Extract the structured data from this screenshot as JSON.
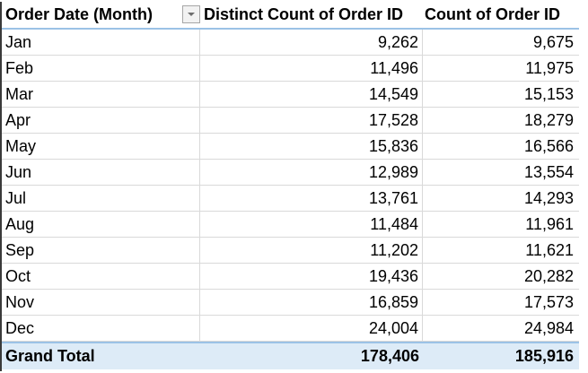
{
  "pivot": {
    "headers": {
      "row_field": "Order Date (Month)",
      "distinct_count": "Distinct Count of Order ID",
      "count": "Count of Order ID"
    },
    "filter_icon": "dropdown-filter-icon",
    "rows": [
      {
        "month": "Jan",
        "distinct": "9,262",
        "count": "9,675"
      },
      {
        "month": "Feb",
        "distinct": "11,496",
        "count": "11,975"
      },
      {
        "month": "Mar",
        "distinct": "14,549",
        "count": "15,153"
      },
      {
        "month": "Apr",
        "distinct": "17,528",
        "count": "18,279"
      },
      {
        "month": "May",
        "distinct": "15,836",
        "count": "16,566"
      },
      {
        "month": "Jun",
        "distinct": "12,989",
        "count": "13,554"
      },
      {
        "month": "Jul",
        "distinct": "13,761",
        "count": "14,293"
      },
      {
        "month": "Aug",
        "distinct": "11,484",
        "count": "11,961"
      },
      {
        "month": "Sep",
        "distinct": "11,202",
        "count": "11,621"
      },
      {
        "month": "Oct",
        "distinct": "19,436",
        "count": "20,282"
      },
      {
        "month": "Nov",
        "distinct": "16,859",
        "count": "17,573"
      },
      {
        "month": "Dec",
        "distinct": "24,004",
        "count": "24,984"
      }
    ],
    "grand_total": {
      "label": "Grand Total",
      "distinct": "178,406",
      "count": "185,916"
    },
    "colors": {
      "header_border": "#9bc2e6",
      "total_fill": "#ddebf7",
      "gridline": "#d9d9d9"
    }
  }
}
